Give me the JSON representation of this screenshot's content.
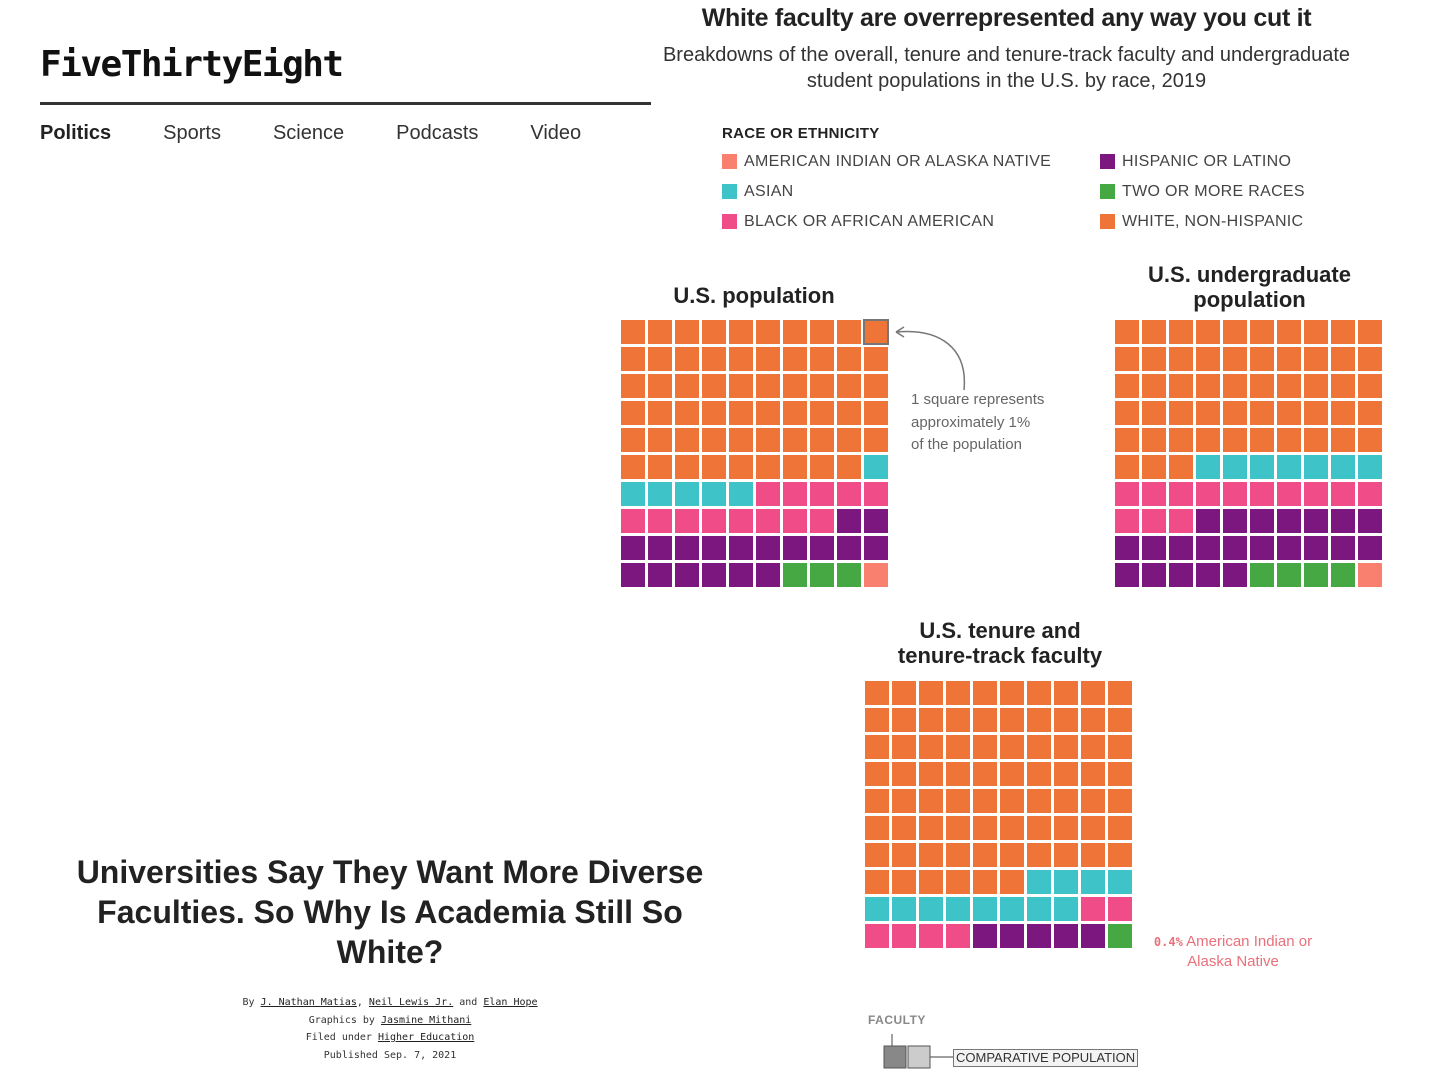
{
  "site": {
    "logo": "FiveThirtyEight",
    "nav": [
      "Politics",
      "Sports",
      "Science",
      "Podcasts",
      "Video"
    ]
  },
  "article": {
    "headline": "Universities Say They Want More Diverse Faculties. So Why Is Academia Still So White?",
    "by_prefix": "By",
    "authors": [
      "J. Nathan Matias",
      "Neil Lewis Jr.",
      "Elan Hope"
    ],
    "and_word": "and",
    "graphics_prefix": "Graphics by",
    "graphics_author": "Jasmine Mithani",
    "filed_prefix": "Filed under",
    "filed_topic": "Higher Education",
    "published": "Published Sep. 7, 2021"
  },
  "chart": {
    "title": "White faculty are overrepresented any way you cut it",
    "subtitle": "Breakdowns of the overall, tenure and tenure-track faculty and undergraduate student populations in the U.S. by race, 2019",
    "legend_title": "RACE OR ETHNICITY",
    "legend": [
      {
        "label": "AMERICAN INDIAN OR ALASKA NATIVE",
        "color": "#f9806e"
      },
      {
        "label": "HISPANIC OR LATINO",
        "color": "#7b177e"
      },
      {
        "label": "ASIAN",
        "color": "#3ec3c9"
      },
      {
        "label": "TWO OR MORE RACES",
        "color": "#46a843"
      },
      {
        "label": "BLACK OR AFRICAN AMERICAN",
        "color": "#f04d88"
      },
      {
        "label": "WHITE, NON-HISPANIC",
        "color": "#ef7438"
      }
    ],
    "note": [
      "1 square represents",
      "approximately 1%",
      "of the population"
    ],
    "aian_note_pct": "0.4%",
    "aian_note_text": "American Indian or Alaska Native",
    "faculty_label": "FACULTY",
    "comparative_label": "COMPARATIVE POPULATION"
  },
  "chart_data": [
    {
      "type": "waffle",
      "title": "U.S. population",
      "unit": "1 square ≈ 1%",
      "categories": [
        "White, non-Hispanic",
        "Asian",
        "Black or African American",
        "Hispanic or Latino",
        "Two or more races",
        "American Indian or Alaska Native"
      ],
      "values": [
        59,
        6,
        13,
        18,
        3,
        1
      ]
    },
    {
      "type": "waffle",
      "title": "U.S. undergraduate population",
      "unit": "1 square ≈ 1%",
      "categories": [
        "White, non-Hispanic",
        "Asian",
        "Black or African American",
        "Hispanic or Latino",
        "Two or more races",
        "American Indian or Alaska Native"
      ],
      "values": [
        53,
        7,
        13,
        22,
        4,
        1
      ]
    },
    {
      "type": "waffle",
      "title": "U.S. tenure and tenure-track faculty",
      "unit": "1 square ≈ 1%",
      "categories": [
        "White, non-Hispanic",
        "Asian",
        "Black or African American",
        "Hispanic or Latino",
        "Two or more races",
        "American Indian or Alaska Native"
      ],
      "values": [
        76,
        12,
        6,
        5,
        1,
        0
      ]
    }
  ]
}
